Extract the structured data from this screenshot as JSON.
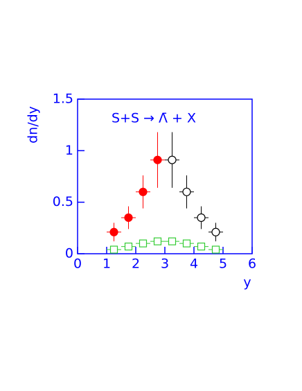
{
  "chart_data": {
    "type": "scatter",
    "title": "S+S → Λ̄ + X",
    "x_label": "y",
    "y_label": "dn/dy",
    "xlim": [
      0,
      6
    ],
    "ylim": [
      0,
      1.5
    ],
    "xticks": [
      0,
      1,
      2,
      3,
      4,
      5,
      6
    ],
    "yticks": [
      0,
      0.5,
      1,
      1.5
    ],
    "axis_color": "#0000ff",
    "series": [
      {
        "color": "#ff0000",
        "marker": "circle",
        "filled": true,
        "x": [
          1.25,
          1.75,
          2.25,
          2.75
        ],
        "values": [
          0.21,
          0.35,
          0.6,
          0.91
        ],
        "errors": [
          0.09,
          0.11,
          0.16,
          0.27
        ],
        "x_errors": [
          0.25,
          0.25,
          0.25,
          0.25
        ]
      },
      {
        "color": "#000000",
        "marker": "circle",
        "filled": false,
        "x": [
          3.25,
          3.75,
          4.25,
          4.75
        ],
        "values": [
          0.91,
          0.6,
          0.35,
          0.21
        ],
        "errors": [
          0.27,
          0.16,
          0.11,
          0.09
        ],
        "x_errors": [
          0.25,
          0.25,
          0.25,
          0.25
        ]
      },
      {
        "color": "#33cc33",
        "marker": "square",
        "filled": false,
        "x": [
          1.25,
          1.75,
          2.25,
          2.75,
          3.25,
          3.75,
          4.25,
          4.75
        ],
        "values": [
          0.04,
          0.07,
          0.1,
          0.12,
          0.12,
          0.1,
          0.07,
          0.04
        ],
        "x_errors": [
          0.25,
          0.25,
          0.25,
          0.25,
          0.25,
          0.25,
          0.25,
          0.25
        ]
      }
    ]
  }
}
